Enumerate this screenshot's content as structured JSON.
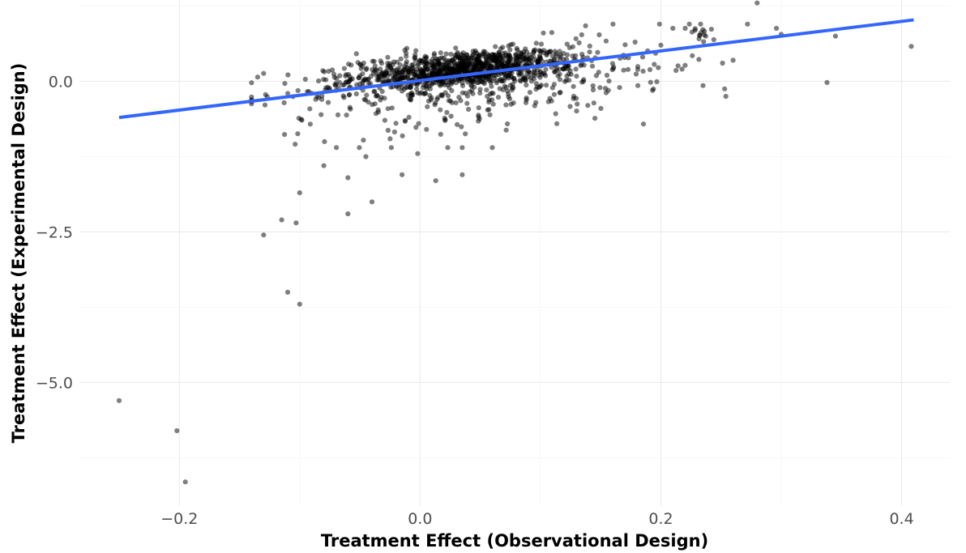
{
  "chart_data": {
    "type": "scatter",
    "title": "",
    "xlabel": "Treatment Effect (Observational Design)",
    "ylabel": "Treatment Effect (Experimental Design)",
    "xlim": [
      -0.283,
      0.44
    ],
    "ylim": [
      -7.05,
      1.35
    ],
    "x_ticks": [
      -0.2,
      0.0,
      0.2,
      0.4
    ],
    "x_tick_labels": [
      "−0.2",
      "0.0",
      "0.2",
      "0.4"
    ],
    "y_ticks": [
      0.0,
      -2.5,
      -5.0
    ],
    "y_tick_labels": [
      "0.0",
      "−2.5",
      "−5.0"
    ],
    "x_minor_ticks": [
      -0.1,
      0.1,
      0.3
    ],
    "y_minor_ticks": [
      1.25,
      -1.25,
      -3.75,
      -6.25
    ],
    "grid": true,
    "legend": "none",
    "point_color": "#000000",
    "point_opacity": 0.5,
    "fit_line": {
      "x": [
        -0.25,
        0.41
      ],
      "y": [
        -0.6,
        1.02
      ],
      "color": "#3366ff"
    },
    "outliers": [
      {
        "x": -0.25,
        "y": -5.3
      },
      {
        "x": -0.202,
        "y": -5.8
      },
      {
        "x": -0.195,
        "y": -6.65
      },
      {
        "x": -0.11,
        "y": -3.5
      },
      {
        "x": -0.1,
        "y": -3.7
      },
      {
        "x": -0.13,
        "y": -2.55
      },
      {
        "x": -0.115,
        "y": -2.3
      },
      {
        "x": -0.103,
        "y": -2.35
      },
      {
        "x": -0.1,
        "y": -1.85
      },
      {
        "x": -0.06,
        "y": -2.2
      },
      {
        "x": -0.04,
        "y": -2.0
      },
      {
        "x": -0.06,
        "y": -1.6
      },
      {
        "x": -0.08,
        "y": -1.4
      },
      {
        "x": -0.015,
        "y": -1.55
      },
      {
        "x": 0.013,
        "y": -1.65
      },
      {
        "x": 0.035,
        "y": -1.55
      },
      {
        "x": -0.045,
        "y": -1.25
      },
      {
        "x": -0.002,
        "y": -1.2
      },
      {
        "x": 0.035,
        "y": -1.1
      },
      {
        "x": 0.06,
        "y": -1.1
      },
      {
        "x": 0.28,
        "y": 1.3
      },
      {
        "x": 0.408,
        "y": 0.58
      },
      {
        "x": 0.345,
        "y": 0.75
      },
      {
        "x": 0.338,
        "y": -0.02
      },
      {
        "x": 0.3,
        "y": 0.78
      },
      {
        "x": 0.296,
        "y": 0.88
      },
      {
        "x": 0.272,
        "y": 0.95
      },
      {
        "x": 0.26,
        "y": 0.35
      },
      {
        "x": 0.254,
        "y": -0.25
      },
      {
        "x": 0.235,
        "y": -0.07
      },
      {
        "x": 0.21,
        "y": 0.88
      },
      {
        "x": 0.2,
        "y": 0.6
      }
    ],
    "clusters": [
      {
        "cx": 0.035,
        "cy": 0.2,
        "sx": 0.045,
        "sy": 0.16,
        "n": 900,
        "corr": 0.45
      },
      {
        "cx": 0.03,
        "cy": 0.0,
        "sx": 0.07,
        "sy": 0.3,
        "n": 320,
        "corr": 0.35
      },
      {
        "cx": -0.01,
        "cy": -0.6,
        "sx": 0.05,
        "sy": 0.35,
        "n": 45,
        "corr": 0.0
      },
      {
        "cx": 0.15,
        "cy": 0.15,
        "sx": 0.045,
        "sy": 0.35,
        "n": 90,
        "corr": 0.2
      },
      {
        "cx": 0.232,
        "cy": 0.85,
        "sx": 0.006,
        "sy": 0.12,
        "n": 16,
        "corr": -0.6
      }
    ]
  }
}
